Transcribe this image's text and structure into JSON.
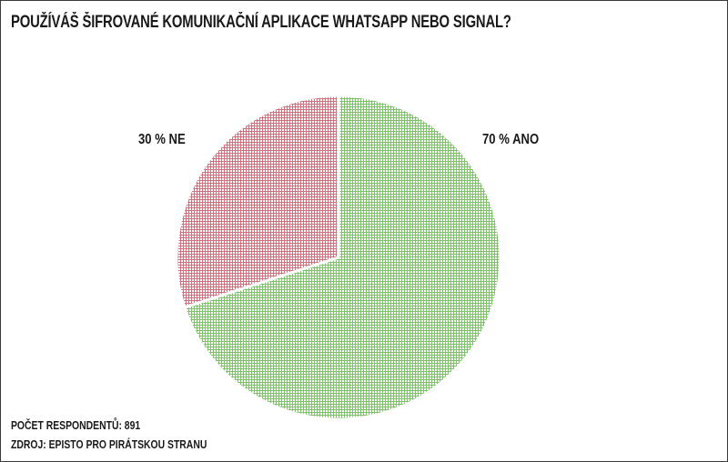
{
  "chart_data": {
    "type": "pie",
    "title": "POUŽÍVÁŠ ŠIFROVANÉ KOMUNIKAČNÍ APLIKACE WHATSAPP NEBO SIGNAL?",
    "slices": [
      {
        "label": "70 % ANO",
        "value": 70,
        "color": "#8fcf7c"
      },
      {
        "label": "30 % NE",
        "value": 30,
        "color": "#d98a92"
      }
    ],
    "respondents": "POČET RESPONDENTŮ: 891",
    "source": "ZDROJ: EPISTO PRO PIRÁTSKOU STRANU"
  }
}
